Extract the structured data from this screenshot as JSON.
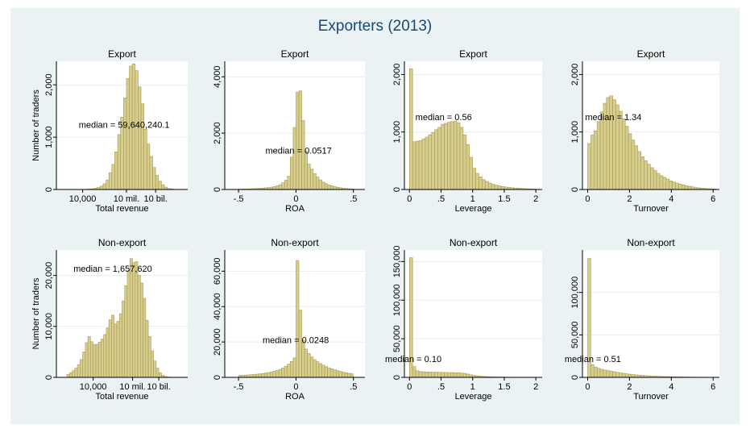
{
  "title": "Exporters (2013)",
  "colors": {
    "frame": "#eaf2f3",
    "bar_fill": "#d6cd8e",
    "bar_stroke": "#a69b50",
    "title": "#1a4773",
    "grid": "#e6eeef"
  },
  "y_axis_label": "Number of traders",
  "chart_data": [
    {
      "type": "bar",
      "panel_title": "Export",
      "xlabel": "Total revenue",
      "ylabel": "Number of traders",
      "xscale": "log",
      "xlim": [
        2.2,
        11.2
      ],
      "ylim": [
        0,
        2450
      ],
      "xticks": [
        {
          "v": 4,
          "label": "10,000"
        },
        {
          "v": 7,
          "label": "10 mil."
        },
        {
          "v": 9,
          "label": "10 bil."
        }
      ],
      "yticks": [
        0,
        1000,
        2000
      ],
      "ytick_labels": [
        "0",
        "1,000",
        "2,000"
      ],
      "bin_start": 4.2,
      "bin_width": 0.2,
      "values": [
        5,
        10,
        15,
        25,
        40,
        65,
        110,
        180,
        320,
        480,
        720,
        1050,
        1380,
        1750,
        2120,
        2360,
        2400,
        2270,
        1960,
        1640,
        1150,
        870,
        630,
        420,
        270,
        160,
        90,
        45,
        20,
        10
      ],
      "median_label": "median = 59,640,240.1"
    },
    {
      "type": "bar",
      "panel_title": "Export",
      "xlabel": "ROA",
      "ylabel": "",
      "xlim": [
        -0.62,
        0.6
      ],
      "ylim": [
        0,
        4550
      ],
      "xticks": [
        {
          "v": -0.5,
          "label": "-.5"
        },
        {
          "v": 0,
          "label": "0"
        },
        {
          "v": 0.5,
          "label": ".5"
        }
      ],
      "yticks": [
        0,
        2000,
        4000
      ],
      "ytick_labels": [
        "0",
        "2,000",
        "4,000"
      ],
      "bin_start": -0.5,
      "bin_width": 0.025,
      "values": [
        10,
        15,
        15,
        20,
        25,
        30,
        35,
        40,
        50,
        60,
        70,
        85,
        100,
        130,
        170,
        240,
        330,
        470,
        1150,
        2200,
        3450,
        3500,
        2450,
        1350,
        900,
        720,
        560,
        440,
        340,
        260,
        210,
        160,
        130,
        100,
        80,
        60,
        45,
        35,
        25,
        20
      ],
      "median_label": "median = 0.0517"
    },
    {
      "type": "bar",
      "panel_title": "Export",
      "xlabel": "Leverage",
      "ylabel": "",
      "xlim": [
        -0.08,
        2.1
      ],
      "ylim": [
        0,
        2230
      ],
      "xticks": [
        {
          "v": 0,
          "label": "0"
        },
        {
          "v": 0.5,
          "label": ".5"
        },
        {
          "v": 1,
          "label": "1"
        },
        {
          "v": 1.5,
          "label": "1.5"
        },
        {
          "v": 2,
          "label": "2"
        }
      ],
      "yticks": [
        0,
        1000,
        2000
      ],
      "ytick_labels": [
        "0",
        "1,000",
        "2,000"
      ],
      "bin_start": 0,
      "bin_width": 0.05,
      "values": [
        2100,
        830,
        840,
        850,
        880,
        910,
        950,
        990,
        1040,
        1080,
        1130,
        1150,
        1170,
        1180,
        1190,
        1160,
        1080,
        950,
        780,
        560,
        370,
        280,
        220,
        170,
        140,
        110,
        90,
        75,
        62,
        52,
        44,
        37,
        31,
        26,
        22,
        18,
        15,
        12,
        10,
        8
      ],
      "median_label": "median = 0.56"
    },
    {
      "type": "bar",
      "panel_title": "Export",
      "xlabel": "Turnover",
      "ylabel": "",
      "xlim": [
        -0.25,
        6.3
      ],
      "ylim": [
        0,
        2230
      ],
      "xticks": [
        {
          "v": 0,
          "label": "0"
        },
        {
          "v": 2,
          "label": "2"
        },
        {
          "v": 4,
          "label": "4"
        },
        {
          "v": 6,
          "label": "6"
        }
      ],
      "yticks": [
        0,
        1000,
        2000
      ],
      "ytick_labels": [
        "0",
        "1,000",
        "2,000"
      ],
      "bin_start": 0,
      "bin_width": 0.15,
      "values": [
        800,
        950,
        1020,
        1180,
        1350,
        1500,
        1600,
        1630,
        1560,
        1470,
        1360,
        1230,
        1100,
        970,
        860,
        760,
        660,
        570,
        500,
        440,
        380,
        330,
        280,
        240,
        210,
        180,
        150,
        130,
        110,
        95,
        80,
        65,
        55,
        45,
        35,
        28,
        22,
        18,
        14,
        10,
        8
      ],
      "median_label": "median = 1.34"
    },
    {
      "type": "bar",
      "panel_title": "Non-export",
      "xlabel": "Total revenue",
      "ylabel": "Number of traders",
      "xscale": "log",
      "xlim": [
        1.2,
        11.2
      ],
      "ylim": [
        0,
        25000
      ],
      "xticks": [
        {
          "v": 4,
          "label": "10,000"
        },
        {
          "v": 7,
          "label": "10 mil."
        },
        {
          "v": 9,
          "label": "10 bil."
        }
      ],
      "yticks": [
        0,
        10000,
        20000
      ],
      "ytick_labels": [
        "0",
        "10,000",
        "20,000"
      ],
      "bin_start": 2,
      "bin_width": 0.2,
      "values": [
        600,
        900,
        1300,
        1800,
        2500,
        3500,
        5000,
        6800,
        8000,
        7000,
        6400,
        6500,
        6900,
        7500,
        8400,
        9700,
        11300,
        12200,
        10500,
        11000,
        12500,
        15000,
        18000,
        21000,
        23300,
        22500,
        22700,
        20000,
        18500,
        15500,
        11200,
        8000,
        5200,
        3200,
        1800,
        900,
        400,
        180,
        80,
        40
      ],
      "median_label": "median = 1,657,620"
    },
    {
      "type": "bar",
      "panel_title": "Non-export",
      "xlabel": "ROA",
      "ylabel": "",
      "xlim": [
        -0.62,
        0.6
      ],
      "ylim": [
        0,
        72000
      ],
      "xticks": [
        {
          "v": -0.5,
          "label": "-.5"
        },
        {
          "v": 0,
          "label": "0"
        },
        {
          "v": 0.5,
          "label": ".5"
        }
      ],
      "yticks": [
        0,
        20000,
        40000,
        60000
      ],
      "ytick_labels": [
        "0",
        "20,000",
        "40,000",
        "60,000"
      ],
      "bin_start": -0.5,
      "bin_width": 0.025,
      "values": [
        1100,
        1200,
        1300,
        1400,
        1500,
        1650,
        1800,
        2000,
        2200,
        2400,
        2700,
        3000,
        3400,
        3900,
        4500,
        5300,
        6300,
        7500,
        9000,
        11000,
        66000,
        38000,
        21000,
        16000,
        13500,
        11500,
        10000,
        8800,
        7800,
        6900,
        6100,
        5400,
        4800,
        4300,
        3800,
        3300,
        2900,
        2600,
        2300,
        2000
      ],
      "median_label": "median = 0.0248"
    },
    {
      "type": "bar",
      "panel_title": "Non-export",
      "xlabel": "Leverage",
      "ylabel": "",
      "xlim": [
        -0.08,
        2.1
      ],
      "ylim": [
        0,
        165000
      ],
      "xticks": [
        {
          "v": 0,
          "label": "0"
        },
        {
          "v": 0.5,
          "label": ".5"
        },
        {
          "v": 1,
          "label": "1"
        },
        {
          "v": 1.5,
          "label": "1.5"
        },
        {
          "v": 2,
          "label": "2"
        }
      ],
      "yticks": [
        0,
        50000,
        100000,
        150000
      ],
      "ytick_labels": [
        "0",
        "50,000",
        "100,000",
        "150,000"
      ],
      "bin_start": 0,
      "bin_width": 0.05,
      "values": [
        155000,
        14000,
        8500,
        7500,
        7200,
        7000,
        6800,
        6700,
        6600,
        6500,
        6400,
        6300,
        6200,
        6100,
        6000,
        5900,
        5600,
        5100,
        4200,
        3200,
        2400,
        1900,
        1500,
        1200,
        1000,
        850,
        720,
        600,
        500,
        420,
        360,
        300,
        260,
        220,
        190,
        160,
        140,
        120,
        100,
        80
      ],
      "median_label": "median = 0.10"
    },
    {
      "type": "bar",
      "panel_title": "Non-export",
      "xlabel": "Turnover",
      "ylabel": "",
      "xlim": [
        -0.25,
        6.3
      ],
      "ylim": [
        0,
        150000
      ],
      "xticks": [
        {
          "v": 0,
          "label": "0"
        },
        {
          "v": 2,
          "label": "2"
        },
        {
          "v": 4,
          "label": "4"
        },
        {
          "v": 6,
          "label": "6"
        }
      ],
      "yticks": [
        0,
        50000,
        100000
      ],
      "ytick_labels": [
        "0",
        "50,000",
        "100,000"
      ],
      "bin_start": 0,
      "bin_width": 0.15,
      "values": [
        140000,
        15000,
        12000,
        10500,
        9500,
        8700,
        8000,
        7300,
        6600,
        5900,
        5300,
        4700,
        4200,
        3700,
        3300,
        2900,
        2600,
        2300,
        2000,
        1800,
        1600,
        1400,
        1250,
        1100,
        980,
        870,
        770,
        680,
        600,
        530,
        470,
        410,
        360,
        320,
        280,
        250,
        220,
        190,
        170,
        150,
        130
      ],
      "median_label": "median = 0.51"
    }
  ]
}
